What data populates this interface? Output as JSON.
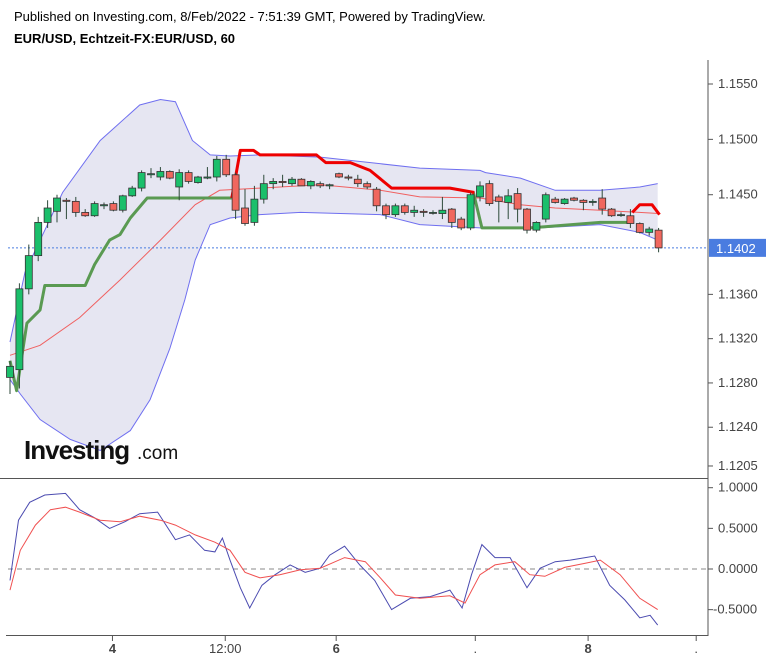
{
  "header": {
    "published": "Published on Investing.com, 8/Feb/2022 - 7:51:39 GMT, Powered by TradingView.",
    "symbol": "EUR/USD, Echtzeit-FX:EUR/USD, 60"
  },
  "logo": {
    "text": "Investing",
    "suffix": ".com"
  },
  "colors": {
    "up": "#1bbf6b",
    "down": "#f0675e",
    "band": "#6f6ff0",
    "band_fill": "#e6e6f2",
    "mid": "#f06060",
    "stop_green": "#5a9a52",
    "stop_red": "#ee0000",
    "osc_blue": "#4b4bb0",
    "osc_red": "#f05050",
    "last_price_badge": "#4a7ce0"
  },
  "chart_data": [
    {
      "type": "candlestick",
      "panel": "price",
      "price_ticks": [
        "1.1550",
        "1.1500",
        "1.1450",
        "1.1360",
        "1.1320",
        "1.1280",
        "1.1240",
        "1.1205"
      ],
      "last_price": "1.1402",
      "ylim": [
        1.1195,
        1.1575
      ],
      "x_ticks": [
        {
          "label": "4",
          "bar": 10.9,
          "bold": true
        },
        {
          "label": "12:00",
          "bar": 22.9,
          "bold": false
        },
        {
          "label": "6",
          "bar": 34.7,
          "bold": true
        },
        {
          "label": ".",
          "bar": 49.5,
          "bold": false
        },
        {
          "label": "8",
          "bar": 61.5,
          "bold": true
        },
        {
          "label": ".",
          "bar": 73,
          "bold": false
        }
      ],
      "ohlc": [
        [
          1.1285,
          1.13,
          1.127,
          1.1295
        ],
        [
          1.1292,
          1.137,
          1.1275,
          1.1365
        ],
        [
          1.1365,
          1.1405,
          1.136,
          1.1395
        ],
        [
          1.1395,
          1.143,
          1.139,
          1.1425
        ],
        [
          1.1425,
          1.1445,
          1.142,
          1.1438
        ],
        [
          1.1435,
          1.145,
          1.1425,
          1.1447
        ],
        [
          1.1445,
          1.1447,
          1.1428,
          1.1444
        ],
        [
          1.1444,
          1.1448,
          1.143,
          1.1434
        ],
        [
          1.1434,
          1.1437,
          1.143,
          1.1431
        ],
        [
          1.1431,
          1.1444,
          1.143,
          1.1442
        ],
        [
          1.144,
          1.1443,
          1.1437,
          1.1441
        ],
        [
          1.1442,
          1.1444,
          1.1435,
          1.1436
        ],
        [
          1.1436,
          1.145,
          1.1434,
          1.1449
        ],
        [
          1.1449,
          1.1458,
          1.1448,
          1.1456
        ],
        [
          1.1456,
          1.1472,
          1.1453,
          1.147
        ],
        [
          1.1468,
          1.1474,
          1.1465,
          1.1469
        ],
        [
          1.1466,
          1.1475,
          1.1463,
          1.1471
        ],
        [
          1.1471,
          1.1472,
          1.1464,
          1.1465
        ],
        [
          1.1457,
          1.1473,
          1.1445,
          1.147
        ],
        [
          1.147,
          1.1472,
          1.146,
          1.1462
        ],
        [
          1.1461,
          1.1467,
          1.146,
          1.1466
        ],
        [
          1.1465,
          1.1475,
          1.1464,
          1.1466
        ],
        [
          1.1466,
          1.1485,
          1.1462,
          1.1482
        ],
        [
          1.1482,
          1.1486,
          1.1466,
          1.1468
        ],
        [
          1.1468,
          1.147,
          1.1428,
          1.1436
        ],
        [
          1.1438,
          1.1455,
          1.1422,
          1.1424
        ],
        [
          1.1425,
          1.1458,
          1.1422,
          1.1446
        ],
        [
          1.1446,
          1.1468,
          1.1442,
          1.146
        ],
        [
          1.146,
          1.1465,
          1.1455,
          1.1462
        ],
        [
          1.1462,
          1.1468,
          1.1457,
          1.1461
        ],
        [
          1.146,
          1.1466,
          1.1458,
          1.1464
        ],
        [
          1.1464,
          1.1465,
          1.1458,
          1.1458
        ],
        [
          1.1458,
          1.1463,
          1.1455,
          1.1462
        ],
        [
          1.146,
          1.1462,
          1.1456,
          1.1458
        ],
        [
          1.1458,
          1.146,
          1.1455,
          1.1459
        ],
        [
          1.1469,
          1.147,
          1.1465,
          1.1466
        ],
        [
          1.1466,
          1.1468,
          1.1463,
          1.1465
        ],
        [
          1.1464,
          1.1468,
          1.1457,
          1.146
        ],
        [
          1.146,
          1.1462,
          1.1455,
          1.1457
        ],
        [
          1.1455,
          1.1457,
          1.1435,
          1.144
        ],
        [
          1.144,
          1.1442,
          1.1428,
          1.1432
        ],
        [
          1.1432,
          1.1442,
          1.143,
          1.144
        ],
        [
          1.144,
          1.1442,
          1.1432,
          1.1434
        ],
        [
          1.1434,
          1.144,
          1.143,
          1.1436
        ],
        [
          1.1435,
          1.1437,
          1.143,
          1.1434
        ],
        [
          1.1434,
          1.1436,
          1.1432,
          1.1434
        ],
        [
          1.1433,
          1.1448,
          1.1428,
          1.1436
        ],
        [
          1.1437,
          1.1438,
          1.142,
          1.1425
        ],
        [
          1.1428,
          1.143,
          1.1418,
          1.142
        ],
        [
          1.142,
          1.1452,
          1.1418,
          1.145
        ],
        [
          1.1448,
          1.1462,
          1.1444,
          1.1458
        ],
        [
          1.146,
          1.1463,
          1.144,
          1.1442
        ],
        [
          1.1448,
          1.145,
          1.1425,
          1.1444
        ],
        [
          1.1443,
          1.1455,
          1.1428,
          1.1449
        ],
        [
          1.1451,
          1.1456,
          1.1425,
          1.1437
        ],
        [
          1.1437,
          1.1438,
          1.1415,
          1.1418
        ],
        [
          1.1418,
          1.1426,
          1.1416,
          1.1425
        ],
        [
          1.1428,
          1.1452,
          1.1425,
          1.145
        ],
        [
          1.1446,
          1.1448,
          1.1442,
          1.1443
        ],
        [
          1.1442,
          1.1447,
          1.1441,
          1.1446
        ],
        [
          1.1447,
          1.1448,
          1.1444,
          1.1445
        ],
        [
          1.1445,
          1.1446,
          1.1436,
          1.1443
        ],
        [
          1.1443,
          1.1446,
          1.144,
          1.1444
        ],
        [
          1.1447,
          1.1455,
          1.1432,
          1.1437
        ],
        [
          1.1437,
          1.1438,
          1.143,
          1.1431
        ],
        [
          1.1432,
          1.1434,
          1.143,
          1.1432
        ],
        [
          1.1431,
          1.1437,
          1.142,
          1.1424
        ],
        [
          1.1424,
          1.1425,
          1.1415,
          1.1416
        ],
        [
          1.1416,
          1.1421,
          1.1413,
          1.1419
        ],
        [
          1.1418,
          1.142,
          1.1398,
          1.1402
        ]
      ],
      "bollinger_upper": [
        [
          0,
          1.1317
        ],
        [
          1.6,
          1.138
        ],
        [
          5.6,
          1.1452
        ],
        [
          9.6,
          1.1499
        ],
        [
          13.8,
          1.1531
        ],
        [
          16,
          1.1536
        ],
        [
          17.6,
          1.1534
        ],
        [
          19.4,
          1.1499
        ],
        [
          21.3,
          1.1486
        ],
        [
          23.4,
          1.1485
        ],
        [
          26.6,
          1.1486
        ],
        [
          33,
          1.1484
        ],
        [
          43.6,
          1.1474
        ],
        [
          50,
          1.1472
        ],
        [
          50.6,
          1.147
        ],
        [
          54.3,
          1.1465
        ],
        [
          58,
          1.1454
        ],
        [
          62.8,
          1.1454
        ],
        [
          67,
          1.1457
        ],
        [
          68.9,
          1.146
        ]
      ],
      "bollinger_lower": [
        [
          0,
          1.1283
        ],
        [
          1.1,
          1.127
        ],
        [
          3.2,
          1.1247
        ],
        [
          6.4,
          1.1229
        ],
        [
          9.6,
          1.1219
        ],
        [
          12.8,
          1.1237
        ],
        [
          14.9,
          1.1265
        ],
        [
          17,
          1.1311
        ],
        [
          18.6,
          1.1355
        ],
        [
          19.7,
          1.1391
        ],
        [
          21.3,
          1.1423
        ],
        [
          23.4,
          1.1429
        ],
        [
          26.6,
          1.1432
        ],
        [
          30.9,
          1.1434
        ],
        [
          39.4,
          1.1432
        ],
        [
          43.6,
          1.1423
        ],
        [
          50,
          1.142
        ],
        [
          56.4,
          1.142
        ],
        [
          62.8,
          1.1423
        ],
        [
          67,
          1.1416
        ],
        [
          68.9,
          1.1409
        ]
      ],
      "bollinger_mid": [
        [
          0,
          1.1305
        ],
        [
          3.2,
          1.1314
        ],
        [
          7.4,
          1.1339
        ],
        [
          11.7,
          1.1373
        ],
        [
          16,
          1.1409
        ],
        [
          19.7,
          1.1441
        ],
        [
          22.3,
          1.1454
        ],
        [
          26.6,
          1.1456
        ],
        [
          33,
          1.1459
        ],
        [
          39.4,
          1.1454
        ],
        [
          43.6,
          1.1448
        ],
        [
          50,
          1.1447
        ],
        [
          54.3,
          1.1441
        ],
        [
          58,
          1.1438
        ],
        [
          62.8,
          1.1436
        ],
        [
          69,
          1.1433
        ]
      ],
      "stop_green": [
        [
          0,
          1.13
        ],
        [
          0.7,
          1.1273
        ],
        [
          1.8,
          1.1334
        ],
        [
          3.2,
          1.1346
        ],
        [
          3.7,
          1.1368
        ],
        [
          8,
          1.1368
        ],
        [
          9,
          1.1387
        ],
        [
          10.6,
          1.1409
        ],
        [
          11.7,
          1.1414
        ],
        [
          12.8,
          1.1429
        ],
        [
          14.6,
          1.1447
        ],
        [
          23.6,
          1.1447
        ]
      ],
      "stop_green_2": [
        [
          49.3,
          1.1452
        ],
        [
          50.2,
          1.142
        ],
        [
          55.3,
          1.142
        ],
        [
          56.9,
          1.1421
        ],
        [
          62.8,
          1.1425
        ],
        [
          66,
          1.1425
        ]
      ],
      "stop_red": [
        [
          23.6,
          1.1447
        ],
        [
          24.5,
          1.149
        ],
        [
          25.9,
          1.149
        ],
        [
          26.6,
          1.1486
        ],
        [
          32.6,
          1.1486
        ],
        [
          33.6,
          1.1479
        ],
        [
          36.2,
          1.1479
        ],
        [
          38.3,
          1.1472
        ],
        [
          40.6,
          1.1456
        ],
        [
          46.8,
          1.1456
        ],
        [
          49.4,
          1.1452
        ]
      ],
      "stop_red_2": [
        [
          66.2,
          1.1434
        ],
        [
          67,
          1.1441
        ],
        [
          68.3,
          1.1441
        ],
        [
          69.1,
          1.1432
        ]
      ]
    },
    {
      "type": "line",
      "panel": "oscillator",
      "y_ticks": [
        "1.0000",
        "0.5000",
        "0.0000",
        "-0.5000"
      ],
      "ylim": [
        -0.82,
        1.1
      ],
      "zero_line": "dashed",
      "series": [
        {
          "values": [
            [
              0,
              -0.14
            ],
            [
              0.9,
              0.6
            ],
            [
              2.1,
              0.82
            ],
            [
              3.7,
              0.91
            ],
            [
              5.9,
              0.93
            ],
            [
              7.4,
              0.73
            ],
            [
              9,
              0.63
            ],
            [
              10.6,
              0.5
            ],
            [
              12.2,
              0.58
            ],
            [
              13.8,
              0.68
            ],
            [
              15.7,
              0.7
            ],
            [
              17.6,
              0.36
            ],
            [
              19.1,
              0.42
            ],
            [
              20.7,
              0.23
            ],
            [
              21.8,
              0.21
            ],
            [
              22.6,
              0.38
            ],
            [
              23.4,
              0.11
            ],
            [
              24.5,
              -0.23
            ],
            [
              25.5,
              -0.48
            ],
            [
              26.8,
              -0.2
            ],
            [
              28.2,
              -0.07
            ],
            [
              29.8,
              0.05
            ],
            [
              31.4,
              -0.04
            ],
            [
              33,
              0.01
            ],
            [
              34,
              0.17
            ],
            [
              35.6,
              0.28
            ],
            [
              37.2,
              0.05
            ],
            [
              38.8,
              -0.14
            ],
            [
              40.6,
              -0.5
            ],
            [
              42.6,
              -0.36
            ],
            [
              44.7,
              -0.34
            ],
            [
              46.8,
              -0.26
            ],
            [
              48.1,
              -0.48
            ],
            [
              49.1,
              -0.07
            ],
            [
              50.2,
              0.3
            ],
            [
              51.6,
              0.14
            ],
            [
              53.2,
              0.14
            ],
            [
              55,
              -0.23
            ],
            [
              56.4,
              0.01
            ],
            [
              58,
              0.09
            ],
            [
              59.6,
              0.11
            ],
            [
              61.2,
              0.14
            ],
            [
              62.2,
              0.16
            ],
            [
              63.8,
              -0.2
            ],
            [
              65.4,
              -0.38
            ],
            [
              67,
              -0.6
            ],
            [
              68.1,
              -0.57
            ],
            [
              68.9,
              -0.69
            ]
          ]
        },
        {
          "values": [
            [
              0,
              -0.26
            ],
            [
              1.1,
              0.23
            ],
            [
              2.7,
              0.54
            ],
            [
              4.3,
              0.73
            ],
            [
              5.9,
              0.76
            ],
            [
              7.4,
              0.7
            ],
            [
              9.6,
              0.6
            ],
            [
              11.7,
              0.58
            ],
            [
              13.8,
              0.65
            ],
            [
              16,
              0.6
            ],
            [
              17.6,
              0.54
            ],
            [
              19.7,
              0.42
            ],
            [
              21.8,
              0.33
            ],
            [
              23.4,
              0.23
            ],
            [
              25,
              -0.04
            ],
            [
              26.6,
              -0.11
            ],
            [
              28.7,
              -0.07
            ],
            [
              30.9,
              -0.01
            ],
            [
              33,
              0.01
            ],
            [
              35.6,
              0.14
            ],
            [
              37.8,
              0.09
            ],
            [
              39.4,
              -0.11
            ],
            [
              41,
              -0.32
            ],
            [
              43.6,
              -0.36
            ],
            [
              46.8,
              -0.33
            ],
            [
              48.4,
              -0.42
            ],
            [
              50,
              -0.07
            ],
            [
              51.6,
              0.05
            ],
            [
              53.7,
              0.09
            ],
            [
              55.3,
              -0.07
            ],
            [
              56.9,
              -0.09
            ],
            [
              59,
              0.02
            ],
            [
              61.2,
              0.07
            ],
            [
              62.8,
              0.11
            ],
            [
              64.9,
              -0.07
            ],
            [
              67,
              -0.36
            ],
            [
              68.9,
              -0.5
            ]
          ]
        }
      ]
    }
  ]
}
